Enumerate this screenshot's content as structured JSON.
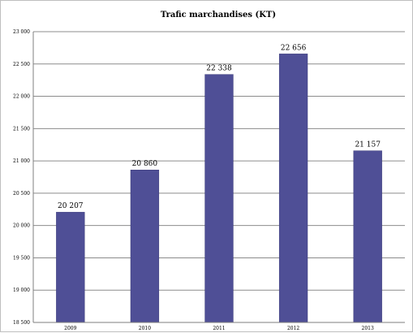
{
  "chart_data": {
    "type": "bar",
    "title": "Trafic marchandises (KT)",
    "xlabel": "",
    "ylabel": "",
    "categories": [
      "2009",
      "2010",
      "2011",
      "2012",
      "2013"
    ],
    "values": [
      20207,
      20860,
      22338,
      22656,
      21157
    ],
    "data_labels": [
      "20 207",
      "20 860",
      "22 338",
      "22 656",
      "21 157"
    ],
    "ylim": [
      18500,
      23000
    ],
    "yticks": [
      18500,
      19000,
      19500,
      20000,
      20500,
      21000,
      21500,
      22000,
      22500,
      23000
    ],
    "ytick_labels": [
      "18 500",
      "19 000",
      "19 500",
      "20 000",
      "20 500",
      "21 000",
      "21 500",
      "22 000",
      "22 500",
      "23 000"
    ],
    "grid": true,
    "legend": "none",
    "colors": {
      "bar": "#4f4f96",
      "bar_edge": "#3c3c7a",
      "gridline": "#8c8c8c"
    }
  }
}
